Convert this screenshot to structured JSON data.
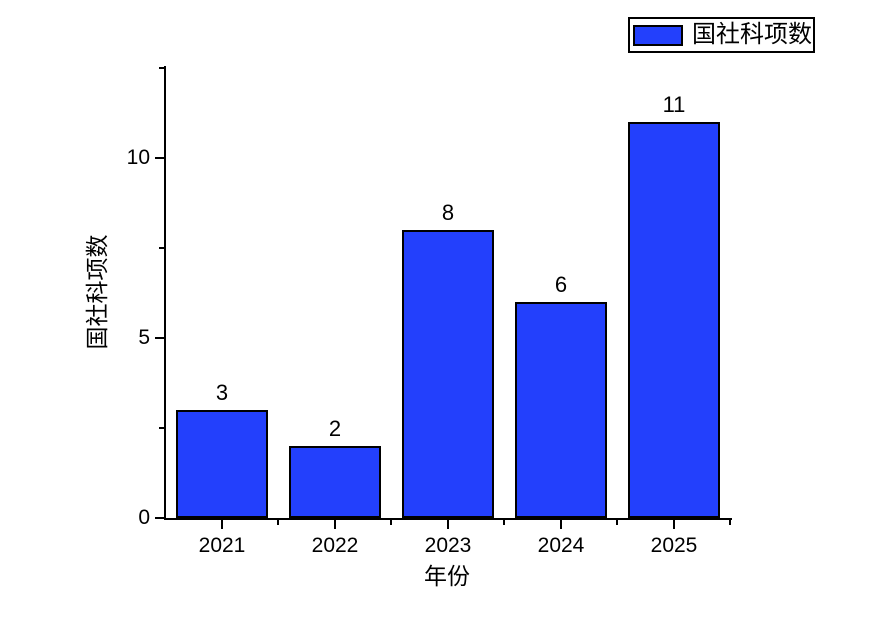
{
  "chart_data": {
    "type": "bar",
    "categories": [
      "2021",
      "2022",
      "2023",
      "2024",
      "2025"
    ],
    "values": [
      3,
      2,
      8,
      6,
      11
    ],
    "bar_labels": [
      "3",
      "2",
      "8",
      "6",
      "11"
    ],
    "series_name": "国社科项数",
    "title": "",
    "xlabel": "年份",
    "ylabel": "国社科项数",
    "ylim": [
      0,
      12.55
    ],
    "yticks_major": [
      0,
      5,
      10
    ],
    "ytick_labels": [
      "0",
      "5",
      "10"
    ],
    "yticks_minor": [
      2.5,
      7.5,
      12.5
    ],
    "grid": false,
    "legend_position": "top-right"
  },
  "legend": {
    "label": "国社科项数",
    "swatch": "blue-filled-rectangle"
  },
  "colors": {
    "bar_fill": "#2340fc",
    "bar_border": "#000000",
    "axis": "#000000",
    "text": "#000000",
    "background": "#ffffff",
    "legend_border": "#000000"
  }
}
